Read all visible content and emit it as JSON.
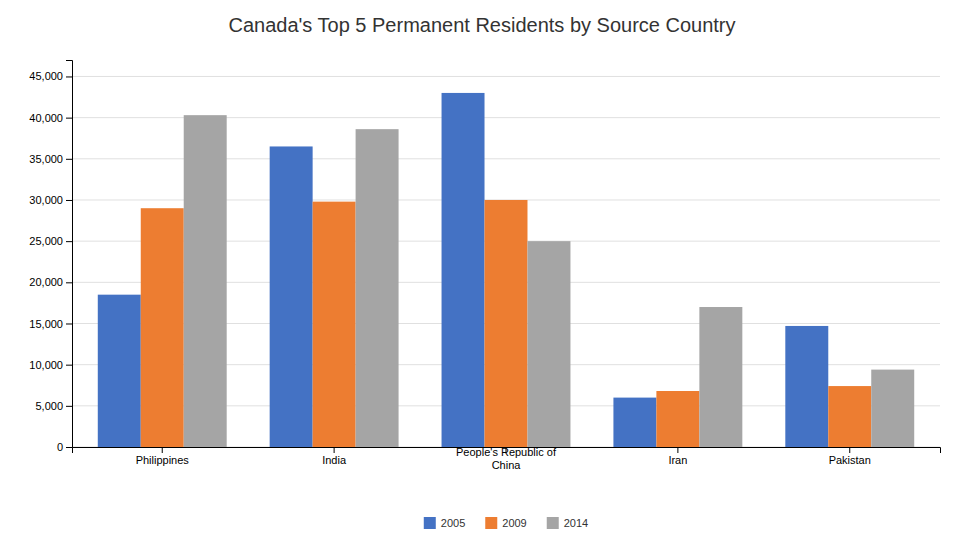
{
  "chart_data": {
    "type": "bar",
    "title": "Canada's Top 5 Permanent Residents by Source Country",
    "categories": [
      "Philippines",
      "India",
      "People's Republic of\nChina",
      "Iran",
      "Pakistan"
    ],
    "series": [
      {
        "name": "2005",
        "color": "#4472C4",
        "values": [
          18500,
          36500,
          43000,
          6000,
          14700
        ]
      },
      {
        "name": "2009",
        "color": "#ED7D31",
        "values": [
          29000,
          29800,
          30000,
          6800,
          7400
        ]
      },
      {
        "name": "2014",
        "color": "#A5A5A5",
        "values": [
          40300,
          38600,
          25000,
          17000,
          9400
        ]
      }
    ],
    "ylim": [
      0,
      47000
    ],
    "yticks": [
      0,
      {
        "value": 5000,
        "label": "5,000"
      },
      {
        "value": 10000,
        "label": "10,000"
      },
      {
        "value": 15000,
        "label": "15,000"
      },
      {
        "value": 20000,
        "label": "20,000"
      },
      {
        "value": 25000,
        "label": "25,000"
      },
      {
        "value": 30000,
        "label": "30,000"
      },
      {
        "value": 35000,
        "label": "35,000"
      },
      {
        "value": 40000,
        "label": "40,000"
      },
      {
        "value": 45000,
        "label": "45,000"
      }
    ],
    "grid": true,
    "legend": "bottom"
  }
}
